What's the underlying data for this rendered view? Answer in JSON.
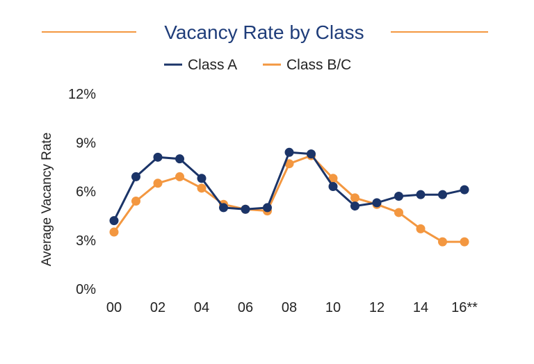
{
  "chart_data": {
    "type": "line",
    "title": "Vacancy Rate by Class",
    "xlabel": "",
    "ylabel": "Average Vacancy Rate",
    "x": [
      "00",
      "01",
      "02",
      "03",
      "04",
      "05",
      "06",
      "07",
      "08",
      "09",
      "10",
      "11",
      "12",
      "13",
      "14",
      "15",
      "16**"
    ],
    "x_tick_labels": [
      "00",
      "02",
      "04",
      "06",
      "08",
      "10",
      "12",
      "14",
      "16**"
    ],
    "y_tick_labels": [
      "0%",
      "3%",
      "6%",
      "9%",
      "12%"
    ],
    "ylim": [
      0,
      12
    ],
    "y_ticks": [
      0,
      3,
      6,
      9,
      12
    ],
    "grid": false,
    "legend_position": "top-center",
    "series": [
      {
        "name": "Class A",
        "color": "#1b3468",
        "values": [
          4.2,
          6.9,
          8.1,
          8.0,
          6.8,
          5.0,
          4.9,
          5.0,
          8.4,
          8.3,
          6.3,
          5.1,
          5.3,
          5.7,
          5.8,
          5.8,
          6.1
        ]
      },
      {
        "name": "Class B/C",
        "color": "#f39740",
        "values": [
          3.5,
          5.4,
          6.5,
          6.9,
          6.2,
          5.2,
          4.9,
          4.8,
          7.7,
          8.2,
          6.8,
          5.6,
          5.2,
          4.7,
          3.7,
          2.9,
          2.9
        ]
      }
    ]
  },
  "colors": {
    "title": "#1f3d7a",
    "title_rule": "#f39740"
  }
}
